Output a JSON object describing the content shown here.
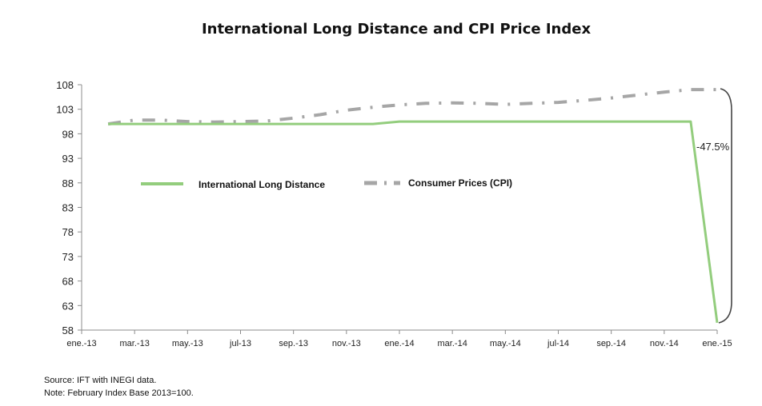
{
  "chart_data": {
    "type": "line",
    "title": "International Long Distance and CPI Price Index",
    "xlabel": "",
    "ylabel": "",
    "ylim": [
      58,
      108
    ],
    "yticks": [
      "108",
      "103",
      "98",
      "93",
      "88",
      "83",
      "78",
      "73",
      "68",
      "63",
      "58"
    ],
    "x_tick_labels": [
      "ene.-13",
      "mar.-13",
      "may.-13",
      "jul-13",
      "sep.-13",
      "nov.-13",
      "ene.-14",
      "mar.-14",
      "may.-14",
      "jul-14",
      "sep.-14",
      "nov.-14",
      "ene.-15"
    ],
    "x": [
      "feb.-13",
      "mar.-13",
      "abr.-13",
      "may.-13",
      "jun.-13",
      "jul.-13",
      "ago.-13",
      "sep.-13",
      "oct.-13",
      "nov.-13",
      "dic.-13",
      "ene.-14",
      "feb.-14",
      "mar.-14",
      "abr.-14",
      "may.-14",
      "jun.-14",
      "jul.-14",
      "ago.-14",
      "sep.-14",
      "oct.-14",
      "nov.-14",
      "dic.-14",
      "ene.-15"
    ],
    "series": [
      {
        "name": "International Long Distance",
        "color": "#93cd7d",
        "values": [
          100,
          100,
          100,
          100,
          100,
          100,
          100,
          100,
          100,
          100,
          100,
          100.5,
          100.5,
          100.5,
          100.5,
          100.5,
          100.5,
          100.5,
          100.5,
          100.5,
          100.5,
          100.5,
          100.5,
          59.5
        ]
      },
      {
        "name": "Consumer Prices (CPI)",
        "color": "#a6a6a6",
        "values": [
          100,
          100.8,
          100.8,
          100.5,
          100.4,
          100.5,
          100.6,
          101.2,
          101.9,
          102.8,
          103.4,
          103.9,
          104.2,
          104.3,
          104.2,
          104.0,
          104.2,
          104.4,
          104.8,
          105.3,
          105.9,
          106.5,
          107,
          107
        ]
      }
    ],
    "legend": "inside, upper-left, horizontal",
    "grid": false,
    "annotation": {
      "text": "-47.5%"
    }
  },
  "footer": {
    "source": "Source: IFT with INEGI data.",
    "note": "Note: February Index Base 2013=100."
  }
}
